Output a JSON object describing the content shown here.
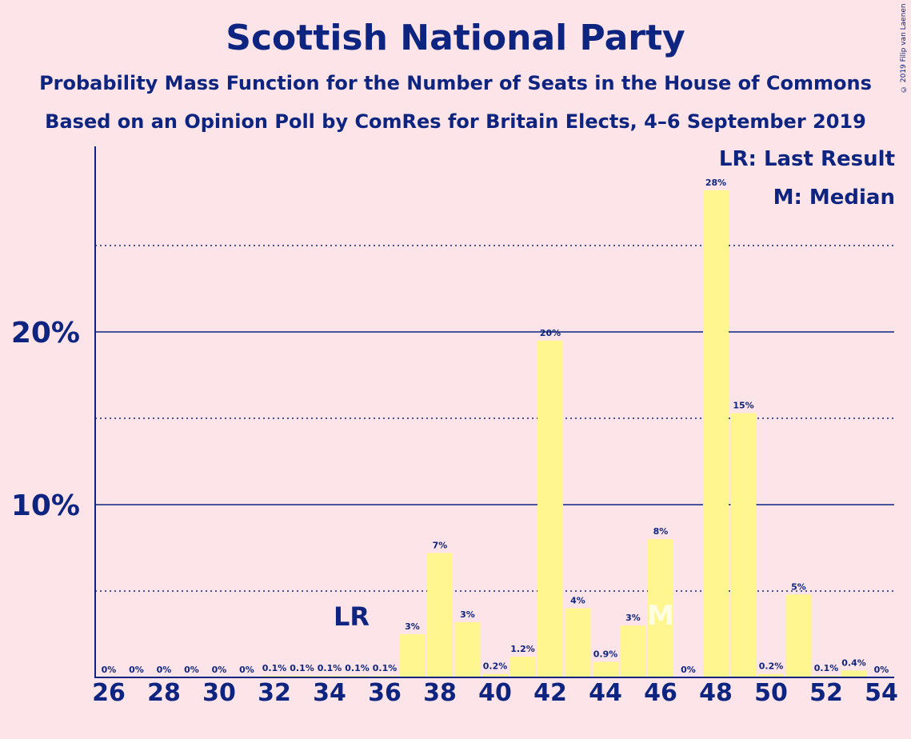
{
  "title": "Scottish National Party",
  "subtitle1": "Probability Mass Function for the Number of Seats in the House of Commons",
  "subtitle2": "Based on an Opinion Poll by ComRes for Britain Elects, 4–6 September 2019",
  "copyright": "© 2019 Filip van Laenen",
  "legend": {
    "lr": "LR: Last Result",
    "m": "M: Median"
  },
  "colors": {
    "bar": "#fff68f",
    "axis": "#0d2480",
    "background": "#fde4e8"
  },
  "chart_data": {
    "type": "bar",
    "x": [
      26,
      27,
      28,
      29,
      30,
      31,
      32,
      33,
      34,
      35,
      36,
      37,
      38,
      39,
      40,
      41,
      42,
      43,
      44,
      45,
      46,
      47,
      48,
      49,
      50,
      51,
      52,
      53,
      54
    ],
    "values": [
      0,
      0,
      0,
      0,
      0,
      0,
      0.1,
      0.1,
      0.1,
      0.1,
      0.1,
      2.5,
      7.2,
      3.2,
      0.2,
      1.2,
      19.5,
      4.0,
      0.9,
      3.0,
      8.0,
      0,
      28.2,
      15.3,
      0.2,
      4.8,
      0.1,
      0.4,
      0
    ],
    "data_labels": [
      "0%",
      "0%",
      "0%",
      "0%",
      "0%",
      "0%",
      "0.1%",
      "0.1%",
      "0.1%",
      "0.1%",
      "0.1%",
      "3%",
      "7%",
      "3%",
      "0.2%",
      "1.2%",
      "20%",
      "4%",
      "0.9%",
      "3%",
      "8%",
      "0%",
      "28%",
      "15%",
      "0.2%",
      "5%",
      "0.1%",
      "0.4%",
      "0%"
    ],
    "xticks": [
      "26",
      "28",
      "30",
      "32",
      "34",
      "36",
      "38",
      "40",
      "42",
      "44",
      "46",
      "48",
      "50",
      "52",
      "54"
    ],
    "yticks": [
      {
        "value": 10,
        "label": "10%"
      },
      {
        "value": 20,
        "label": "20%"
      }
    ],
    "minor_gridlines": [
      5,
      15,
      25
    ],
    "ylim": [
      0,
      30.6
    ],
    "last_result": {
      "seat": 35,
      "label": "LR"
    },
    "median": {
      "seat": 46,
      "label": "M"
    }
  }
}
